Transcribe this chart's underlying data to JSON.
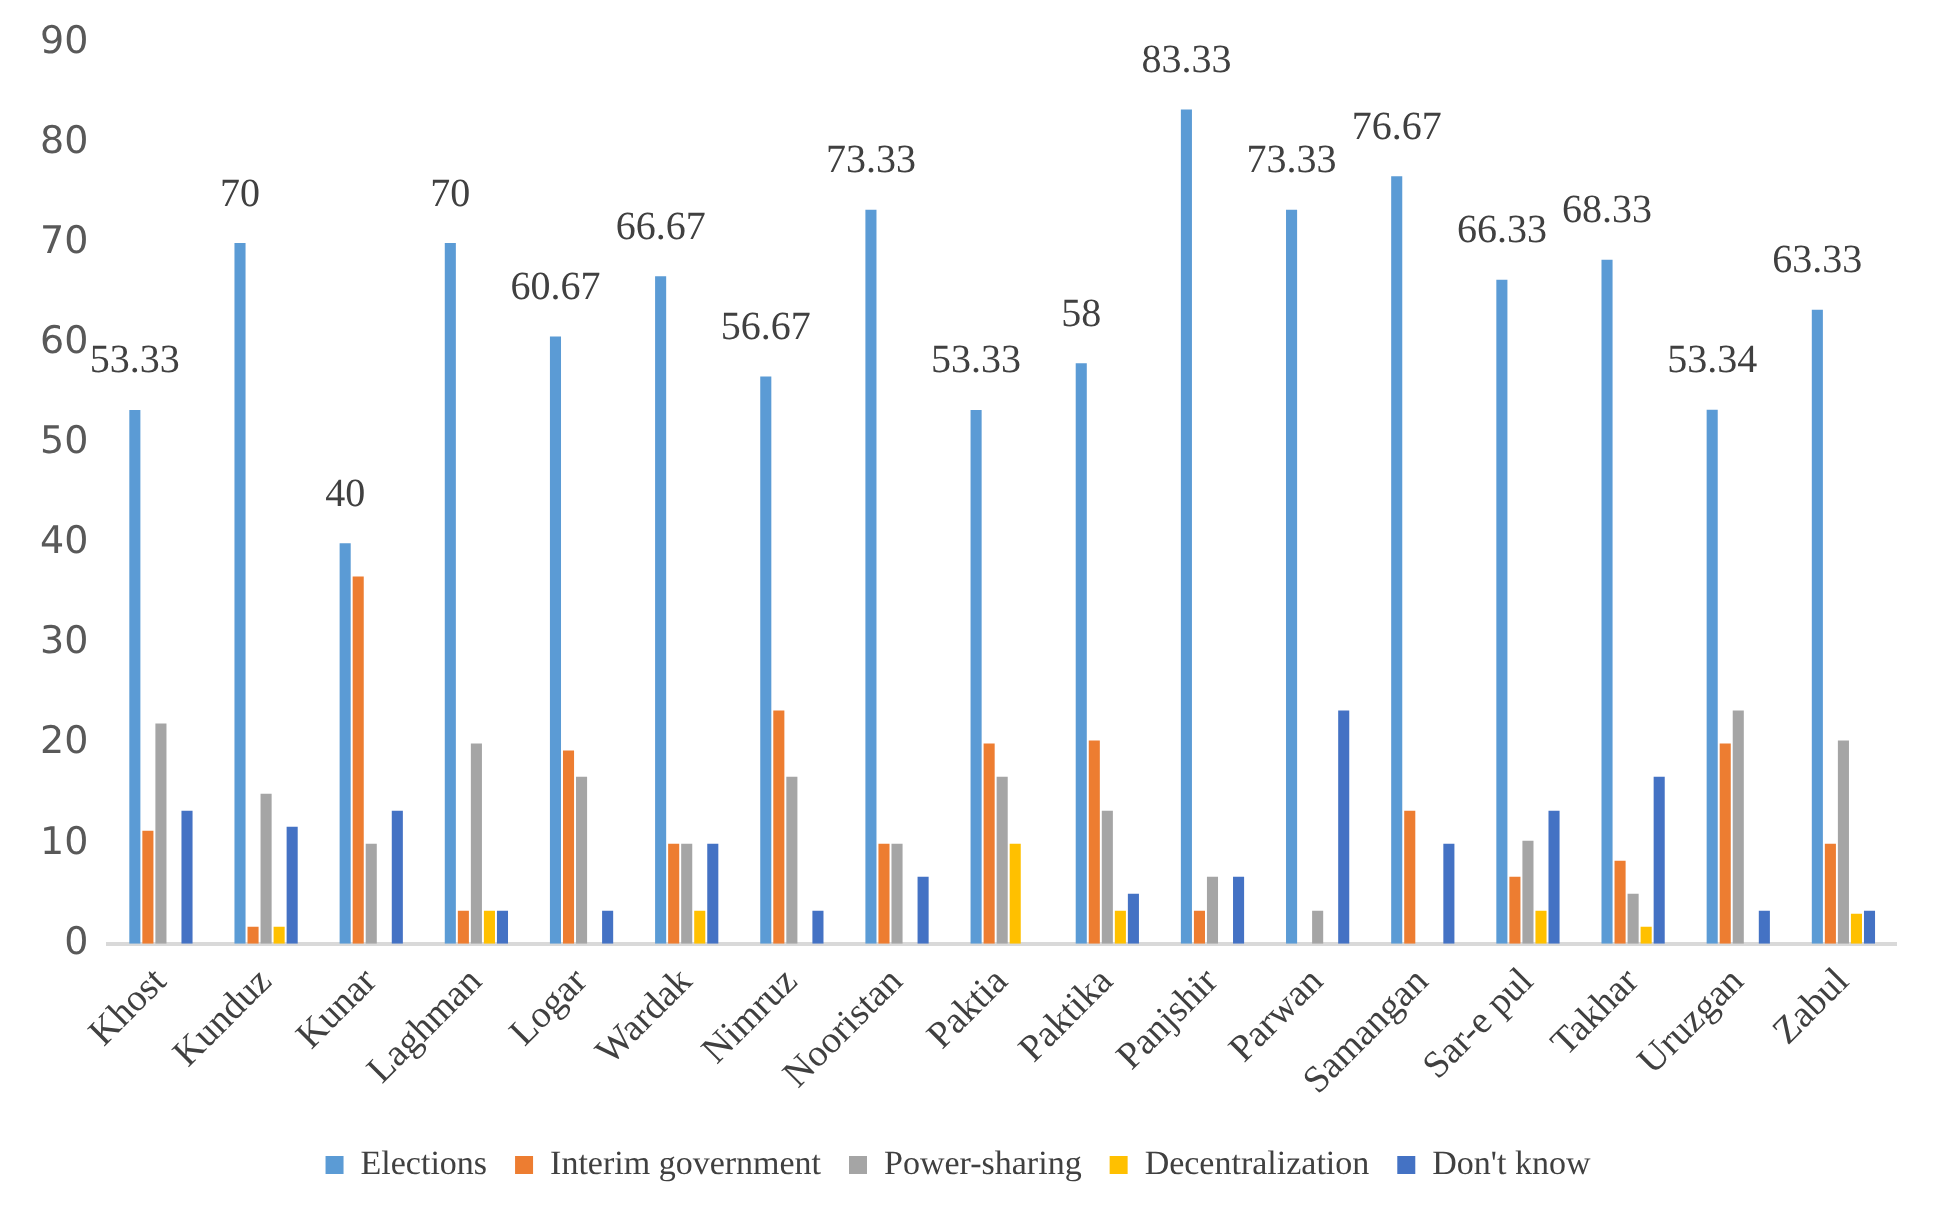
{
  "chart_data": {
    "type": "bar",
    "categories": [
      "Khost",
      "Kunduz",
      "Kunar",
      "Laghman",
      "Logar",
      "Wardak",
      "Nimruz",
      "Nooristan",
      "Paktia",
      "Paktika",
      "Panjshir",
      "Parwan",
      "Samangan",
      "Sar-e pul",
      "Takhar",
      "Uruzgan",
      "Zabul"
    ],
    "series": [
      {
        "name": "Elections",
        "color": "#5b9bd5",
        "values": [
          53.33,
          70,
          40,
          70,
          60.67,
          66.67,
          56.67,
          73.33,
          53.33,
          58,
          83.33,
          73.33,
          76.67,
          66.33,
          68.33,
          53.34,
          63.33
        ],
        "value_labels": [
          "53.33",
          "70",
          "40",
          "70",
          "60.67",
          "66.67",
          "56.67",
          "73.33",
          "53.33",
          "58",
          "83.33",
          "73.33",
          "76.67",
          "66.33",
          "68.33",
          "53.34",
          "63.33"
        ]
      },
      {
        "name": "Interim government",
        "color": "#ed7d31",
        "values": [
          11.3,
          1.7,
          36.7,
          3.3,
          19.3,
          10,
          23.3,
          10,
          20,
          20.3,
          3.3,
          0,
          13.3,
          6.7,
          8.3,
          20,
          10
        ]
      },
      {
        "name": "Power-sharing",
        "color": "#a5a5a5",
        "values": [
          22,
          15,
          10,
          20,
          16.7,
          10,
          16.7,
          10,
          16.7,
          13.3,
          6.7,
          3.3,
          0,
          10.3,
          5,
          23.3,
          20.3
        ]
      },
      {
        "name": "Decentralization",
        "color": "#ffc000",
        "values": [
          0,
          1.7,
          0,
          3.3,
          0,
          3.3,
          0,
          0,
          10,
          3.3,
          0,
          0,
          0,
          3.3,
          1.7,
          0,
          3
        ]
      },
      {
        "name": "Don't know",
        "color": "#4472c4",
        "values": [
          13.3,
          11.7,
          13.3,
          3.3,
          3.3,
          10,
          3.3,
          6.7,
          0,
          5,
          6.7,
          23.3,
          10,
          13.3,
          16.7,
          3.3,
          3.3
        ]
      }
    ],
    "ylim": [
      0,
      90
    ],
    "yticks": [
      0,
      10,
      20,
      30,
      40,
      50,
      60,
      70,
      80,
      90
    ],
    "grid": false,
    "legend": "bottom"
  }
}
